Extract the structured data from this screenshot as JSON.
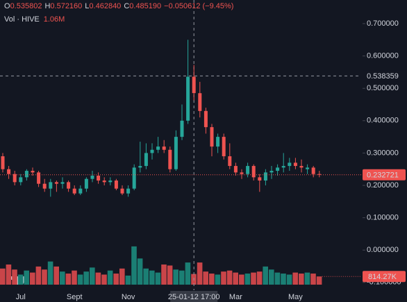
{
  "chart_data": {
    "type": "candlestick",
    "header": {
      "ohlc": [
        {
          "key": "O",
          "value": 0.535802
        },
        {
          "key": "H",
          "value": 0.57216,
          "label": "0.572160"
        },
        {
          "key": "L",
          "value": 0.46284,
          "label": "0.462840"
        },
        {
          "key": "C",
          "value": 0.48519,
          "label": "0.485190"
        }
      ],
      "change": "−0.050612 (−9.45%)",
      "volume_title": "Vol · HIVE"
    },
    "categories": [
      null,
      null,
      null,
      "Jul",
      null,
      null,
      null,
      null,
      null,
      null,
      null,
      null,
      "Sept",
      null,
      null,
      null,
      null,
      null,
      null,
      null,
      null,
      "Nov",
      null,
      null,
      null,
      null,
      null,
      null,
      null,
      null,
      null,
      null,
      "25-01-12 17:00",
      null,
      null,
      null,
      null,
      null,
      null,
      "Mar",
      null,
      null,
      null,
      null,
      null,
      null,
      null,
      null,
      null,
      "May",
      null,
      null,
      null,
      null
    ],
    "open": [
      0.29,
      0.25,
      0.235,
      0.21,
      0.225,
      0.245,
      0.24,
      0.205,
      0.19,
      0.21,
      0.205,
      0.21,
      0.19,
      0.175,
      0.19,
      0.22,
      0.23,
      0.215,
      0.21,
      0.215,
      0.19,
      0.175,
      0.19,
      0.255,
      0.26,
      0.3,
      0.31,
      0.32,
      0.31,
      0.25,
      0.35,
      0.4,
      0.535802,
      0.485,
      0.43,
      0.38,
      0.32,
      0.35,
      0.29,
      0.26,
      0.24,
      0.235,
      0.26,
      0.225,
      0.215,
      0.24,
      0.245,
      0.255,
      0.26,
      0.27,
      0.26,
      0.25,
      0.255,
      0.235
    ],
    "high": [
      0.3,
      0.26,
      0.245,
      0.235,
      0.25,
      0.255,
      0.245,
      0.22,
      0.22,
      0.215,
      0.225,
      0.215,
      0.2,
      0.2,
      0.225,
      0.245,
      0.24,
      0.225,
      0.225,
      0.22,
      0.2,
      0.2,
      0.265,
      0.335,
      0.33,
      0.33,
      0.35,
      0.34,
      0.32,
      0.37,
      0.45,
      0.65,
      0.57216,
      0.52,
      0.44,
      0.39,
      0.36,
      0.36,
      0.33,
      0.27,
      0.25,
      0.27,
      0.265,
      0.235,
      0.25,
      0.26,
      0.265,
      0.3,
      0.285,
      0.285,
      0.28,
      0.265,
      0.26,
      0.245
    ],
    "low": [
      0.24,
      0.22,
      0.2,
      0.2,
      0.215,
      0.23,
      0.195,
      0.18,
      0.165,
      0.18,
      0.19,
      0.18,
      0.17,
      0.17,
      0.18,
      0.21,
      0.205,
      0.2,
      0.2,
      0.185,
      0.17,
      0.165,
      0.185,
      0.24,
      0.25,
      0.28,
      0.3,
      0.3,
      0.24,
      0.245,
      0.34,
      0.39,
      0.46284,
      0.41,
      0.36,
      0.29,
      0.3,
      0.28,
      0.25,
      0.23,
      0.22,
      0.225,
      0.215,
      0.18,
      0.2,
      0.22,
      0.23,
      0.24,
      0.245,
      0.25,
      0.24,
      0.235,
      0.225,
      0.225
    ],
    "close": [
      0.25,
      0.235,
      0.21,
      0.225,
      0.245,
      0.24,
      0.205,
      0.19,
      0.21,
      0.205,
      0.21,
      0.19,
      0.175,
      0.19,
      0.22,
      0.23,
      0.215,
      0.21,
      0.215,
      0.19,
      0.175,
      0.19,
      0.255,
      0.26,
      0.3,
      0.31,
      0.32,
      0.31,
      0.25,
      0.35,
      0.4,
      0.535802,
      0.48519,
      0.43,
      0.38,
      0.32,
      0.35,
      0.29,
      0.26,
      0.24,
      0.235,
      0.26,
      0.225,
      0.215,
      0.24,
      0.245,
      0.255,
      0.26,
      0.27,
      0.26,
      0.255,
      0.255,
      0.235,
      0.232721
    ],
    "volume": [
      1600000,
      2000000,
      1500000,
      1000000,
      1400000,
      1200000,
      1800000,
      1500000,
      2300000,
      1800000,
      1300000,
      1100000,
      1400000,
      1000000,
      1300000,
      1700000,
      1200000,
      1000000,
      1400000,
      1100000,
      1600000,
      900000,
      3800000,
      2600000,
      1600000,
      1400000,
      1200000,
      2000000,
      1900000,
      1500000,
      1400000,
      2200000,
      1060000,
      2200000,
      1300000,
      1100000,
      1000000,
      1300000,
      1400000,
      1200000,
      1000000,
      1100000,
      1200000,
      1300000,
      1800000,
      1500000,
      1200000,
      1100000,
      1000000,
      1200000,
      1100000,
      1200000,
      1100000,
      814270
    ],
    "volume_labels": [
      null,
      null,
      null,
      null,
      null,
      null,
      null,
      null,
      null,
      null,
      null,
      null,
      null,
      null,
      null,
      null,
      null,
      null,
      null,
      null,
      null,
      null,
      null,
      null,
      null,
      null,
      null,
      null,
      null,
      null,
      null,
      null,
      "1.06M",
      null,
      null,
      null,
      null,
      null,
      null,
      null,
      null,
      null,
      null,
      null,
      null,
      null,
      null,
      null,
      null,
      null,
      null,
      null,
      null,
      "814.27K"
    ],
    "colors": {
      "up": "#26a69a",
      "down": "#ef5350",
      "volume_up": "#1b7f74",
      "volume_down": "#c94549"
    },
    "ylim": [
      -0.124,
      0.773
    ],
    "yticks": [
      {
        "value": 0.7,
        "label": "0.700000"
      },
      {
        "value": 0.6,
        "label": "0.600000"
      },
      {
        "value": 0.5,
        "label": "0.500000"
      },
      {
        "value": 0.4,
        "label": "0.400000"
      },
      {
        "value": 0.3,
        "label": "0.300000"
      },
      {
        "value": 0.2,
        "label": "0.200000"
      },
      {
        "value": 0.1,
        "label": "0.100000"
      },
      {
        "value": 0,
        "label": "0.000000"
      },
      {
        "value": -0.1,
        "label": "-0.100000"
      }
    ],
    "y2lim": [
      0,
      4000000
    ],
    "crosshair_price": 0.538359
  }
}
